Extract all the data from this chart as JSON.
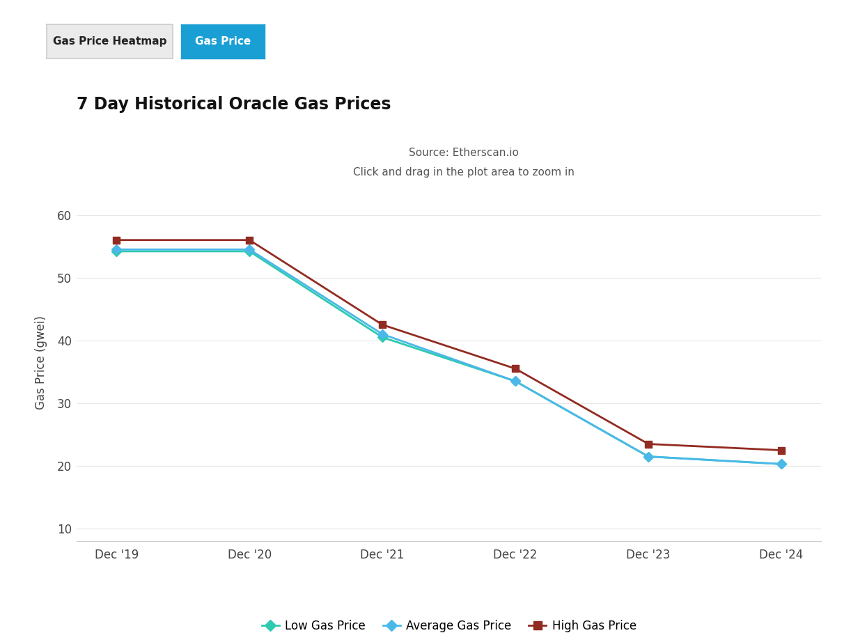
{
  "title": "7 Day Historical Oracle Gas Prices",
  "subtitle_line1": "Source: Etherscan.io",
  "subtitle_line2": "Click and drag in the plot area to zoom in",
  "ylabel": "Gas Price (gwei)",
  "x_labels": [
    "Dec '19",
    "Dec '20",
    "Dec '21",
    "Dec '22",
    "Dec '23",
    "Dec '24"
  ],
  "x_values": [
    0,
    1,
    2,
    3,
    4,
    5
  ],
  "low_gas": [
    54.2,
    54.2,
    40.5,
    33.5,
    21.5,
    20.3
  ],
  "avg_gas": [
    54.5,
    54.5,
    41.0,
    33.5,
    21.5,
    20.3
  ],
  "high_gas": [
    56.0,
    56.0,
    42.5,
    35.5,
    23.5,
    22.5
  ],
  "low_color": "#2dcaaf",
  "avg_color": "#4ab8e8",
  "high_color": "#922b21",
  "bg_color": "#ffffff",
  "plot_bg_color": "#ffffff",
  "grid_color": "#e8e8e8",
  "ylim": [
    8,
    65
  ],
  "yticks": [
    10,
    20,
    30,
    40,
    50,
    60
  ],
  "button1_text": "Gas Price Heatmap",
  "button2_text": "Gas Price",
  "button1_bg": "#ebebeb",
  "button2_bg": "#1a9fd4",
  "button1_text_color": "#222222",
  "button2_text_color": "#ffffff",
  "legend_labels": [
    "Low Gas Price",
    "Average Gas Price",
    "High Gas Price"
  ]
}
